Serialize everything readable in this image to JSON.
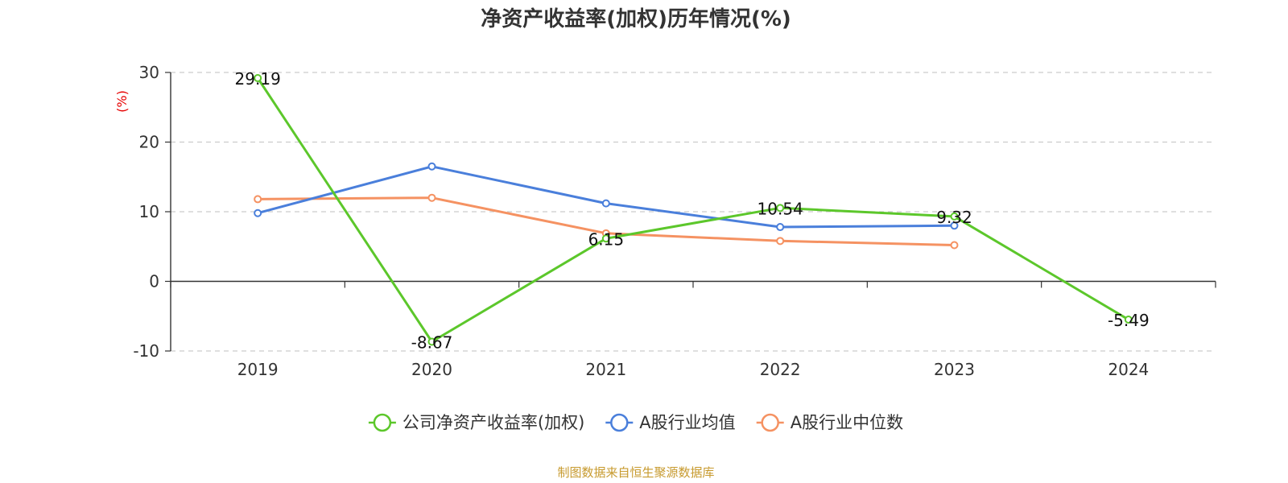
{
  "chart_data": {
    "type": "line",
    "title": "净资产收益率(加权)历年情况(%)",
    "ylabel": "(%)",
    "ylim": [
      -10,
      30
    ],
    "yticks": [
      -10,
      0,
      10,
      20,
      30
    ],
    "categories": [
      "2019",
      "2020",
      "2021",
      "2022",
      "2023",
      "2024"
    ],
    "grid": true,
    "legend_position": "bottom",
    "series": [
      {
        "name": "公司净资产收益率(加权)",
        "color": "#5cc72b",
        "values": [
          29.19,
          -8.67,
          6.15,
          10.54,
          9.32,
          -5.49
        ],
        "labels": [
          "29.19",
          "-8.67",
          "6.15",
          "10.54",
          "9.32",
          "-5.49"
        ]
      },
      {
        "name": "A股行业均值",
        "color": "#4a7fdb",
        "values": [
          9.8,
          16.5,
          11.2,
          7.8,
          8.0,
          null
        ]
      },
      {
        "name": "A股行业中位数",
        "color": "#f59262",
        "values": [
          11.8,
          12.0,
          6.9,
          5.8,
          5.2,
          null
        ]
      }
    ],
    "source": "制图数据来自恒生聚源数据库"
  }
}
